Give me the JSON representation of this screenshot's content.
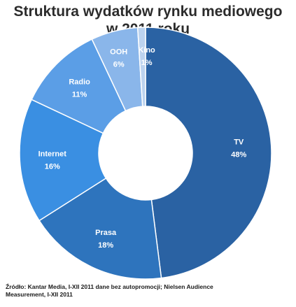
{
  "chart_data": {
    "type": "pie",
    "title_line1": "Struktura wydatków rynku mediowego",
    "title_line2": "w 2011 roku",
    "slices": [
      {
        "label": "TV",
        "value": 48,
        "value_label": "48%",
        "color": "#2a62a3"
      },
      {
        "label": "Prasa",
        "value": 18,
        "value_label": "18%",
        "color": "#2e74bd"
      },
      {
        "label": "Internet",
        "value": 16,
        "value_label": "16%",
        "color": "#3a8fe2"
      },
      {
        "label": "Radio",
        "value": 11,
        "value_label": "11%",
        "color": "#5b9ee6"
      },
      {
        "label": "OOH",
        "value": 6,
        "value_label": "6%",
        "color": "#8ab6ea"
      },
      {
        "label": "Kino",
        "value": 1,
        "value_label": "1%",
        "color": "#bcd3ef"
      }
    ],
    "donut": true
  },
  "source": {
    "line1": "Źródło: Kantar Media, I-XII 2011 dane bez autopromocji; Nielsen Audience",
    "line2": "Measurement, I-XII 2011"
  }
}
